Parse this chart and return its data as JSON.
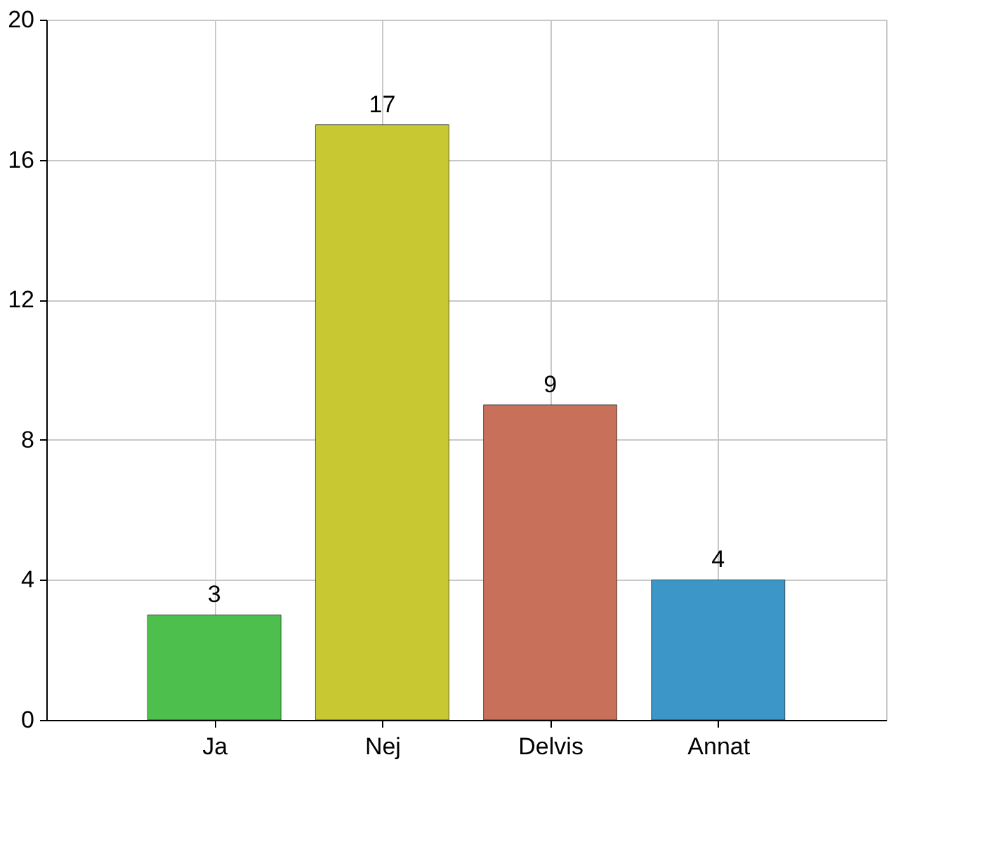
{
  "chart_data": {
    "type": "bar",
    "categories": [
      "Ja",
      "Nej",
      "Delvis",
      "Annat"
    ],
    "values": [
      3,
      17,
      9,
      4
    ],
    "colors": [
      "#4cbf4c",
      "#c8c832",
      "#c8705a",
      "#3c96c8"
    ],
    "ylim": [
      0,
      20
    ],
    "yticks": [
      0,
      4,
      8,
      12,
      16,
      20
    ],
    "grid": true,
    "data_labels": true
  }
}
